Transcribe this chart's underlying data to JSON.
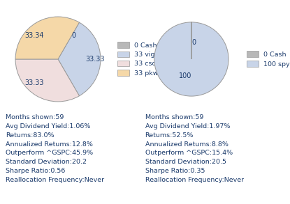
{
  "pie1": {
    "sizes": [
      0.001,
      33.33,
      33.33,
      33.34
    ],
    "labels": [
      "0",
      "33.33",
      "33.33",
      "33.34"
    ],
    "colors": [
      "#b8b8b8",
      "#c8d4e8",
      "#f0dede",
      "#f5d8a8"
    ],
    "legend_labels": [
      "0 Cash",
      "33 vig",
      "33 csd",
      "33 pkw"
    ],
    "legend_colors": [
      "#b8b8b8",
      "#c8d4e8",
      "#f0dede",
      "#f5d8a8"
    ]
  },
  "pie2": {
    "sizes": [
      0.001,
      100.0
    ],
    "labels": [
      "0",
      "100"
    ],
    "colors": [
      "#b8b8b8",
      "#c8d4e8"
    ],
    "legend_labels": [
      "0 Cash",
      "100 spy"
    ],
    "legend_colors": [
      "#b8b8b8",
      "#c8d4e8"
    ]
  },
  "stats1": [
    "Months shown:59",
    "Avg Dividend Yield:1.06%",
    "Retums:83.0%",
    "Annualized Retums:12.8%",
    "Outperform ^GSPC:45.9%",
    "Standard Deviation:20.2",
    "Sharpe Ratio:0.56",
    "Reallocation Frequency:Never"
  ],
  "stats2": [
    "Months shown:59",
    "Avg Dividend Yield:1.97%",
    "Retums:52.5%",
    "Annualized Retums:8.8%",
    "Outperform ^GSPC:15.4%",
    "Standard Deviation:20.5",
    "Sharpe Ratio:0.35",
    "Reallocation Frequency:Never"
  ],
  "text_color": "#1a3a6b",
  "font_size": 6.8,
  "background_color": "#ffffff",
  "edge_color": "#999999"
}
